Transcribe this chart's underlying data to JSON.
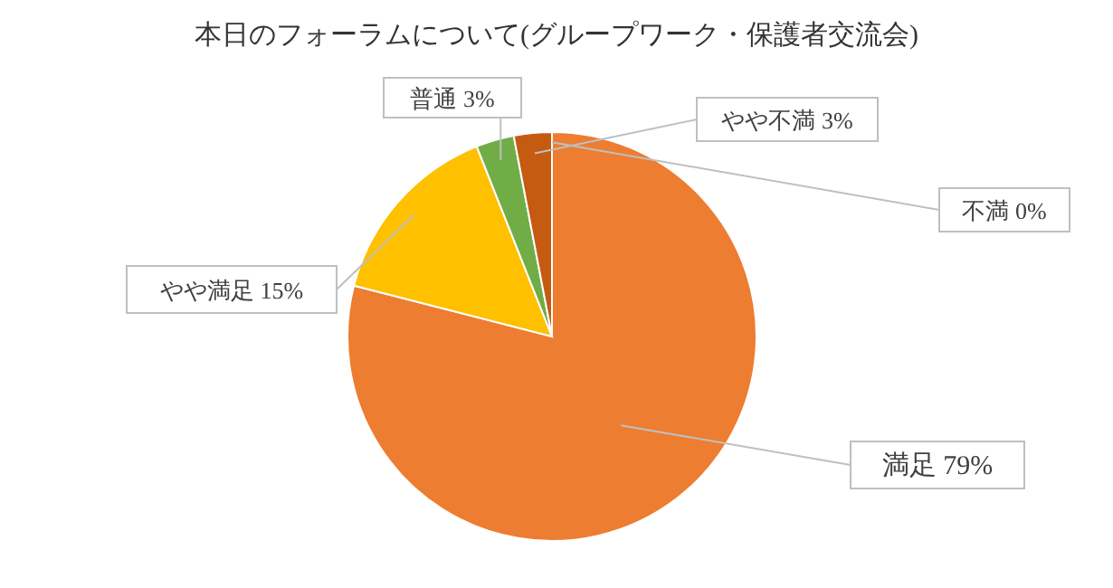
{
  "chart_data": {
    "type": "pie",
    "title": "本日のフォーラムについて(グループワーク・保護者交流会)",
    "categories": [
      "満足",
      "やや満足",
      "普通",
      "やや不満",
      "不満"
    ],
    "values": [
      79,
      15,
      3,
      3,
      0
    ],
    "value_labels": [
      "79%",
      "15%",
      "3%",
      "3%",
      "0%"
    ],
    "colors": [
      "#ed7d31",
      "#ffc000",
      "#70ad47",
      "#c55a11",
      "#9e480e"
    ],
    "legend": false
  }
}
